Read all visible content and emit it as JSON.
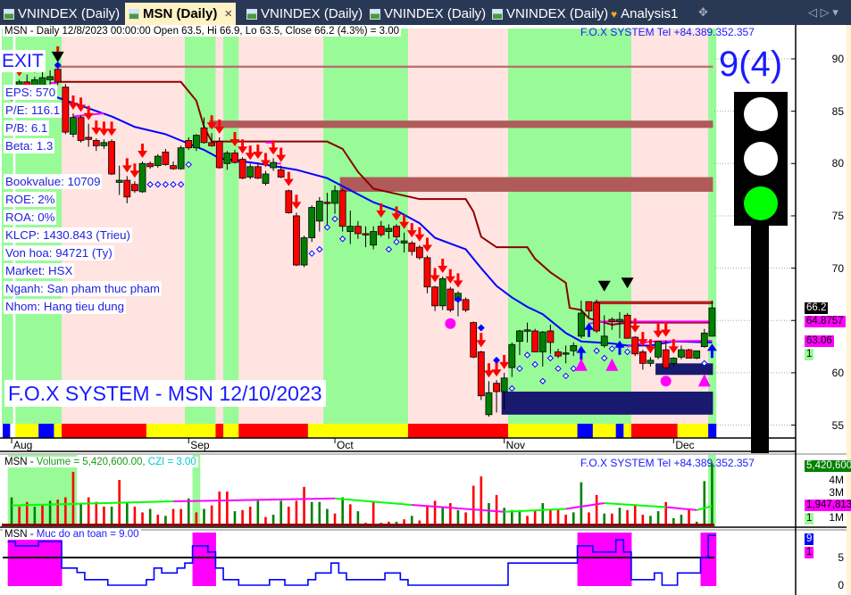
{
  "tabs": [
    {
      "label": "VNINDEX (Daily)",
      "active": false
    },
    {
      "label": "MSN (Daily)",
      "active": true
    },
    {
      "label": "VNINDEX (Daily)",
      "active": false
    },
    {
      "label": "VNINDEX (Daily)",
      "active": false
    },
    {
      "label": "VNINDEX (Daily)",
      "active": false
    },
    {
      "label": "Analysis1",
      "active": false
    }
  ],
  "tab_close": "×",
  "tab_nav": "◁ ▷ ▾",
  "tab_pin": "✥",
  "price_panel": {
    "header": "MSN - Daily 12/8/2023 00:00:00 Open 63.5, Hi 66.9, Lo 63.5, Close 66.2 (4.3%)   = 3.00",
    "fox_tel": "F.O.X SYSTEM Tel +84.389.352.357",
    "exit_label": "EXIT",
    "info": [
      "EPS: 570",
      "P/E: 116.1",
      "P/B: 6.1",
      "Beta: 1.3",
      "Bookvalue: 10709",
      "ROE: 2%",
      "ROA: 0%",
      "KLCP: 1430.843 (Trieu)",
      "Von hoa: 94721 (Ty)",
      "Market: HSX",
      "Nganh: San pham thuc pham",
      "Nhom: Hang tieu dung"
    ],
    "title": "F.O.X SYSTEM - MSN 12/10/2023",
    "signal_score": "9(4)",
    "traffic_light": {
      "top": "#ffffff",
      "middle": "#ffffff",
      "bottom": "#00ff00"
    },
    "axis_labels": [
      "90",
      "85",
      "80",
      "75",
      "70",
      "60",
      "55"
    ],
    "tags": [
      {
        "text": "66.2",
        "bg": "#000000",
        "fg": "#ffffff"
      },
      {
        "text": "64.8757",
        "bg": "#ff00ff",
        "fg": "#000000"
      },
      {
        "text": "63.06",
        "bg": "#ff00ff",
        "fg": "#000000"
      },
      {
        "text": "1",
        "bg": "#98fb98",
        "fg": "#000000"
      }
    ]
  },
  "x_axis": [
    {
      "label": "Aug",
      "bar": 0
    },
    {
      "label": "Sep",
      "bar": 23
    },
    {
      "label": "Oct",
      "bar": 42
    },
    {
      "label": "Nov",
      "bar": 64
    },
    {
      "label": "Dec",
      "bar": 86
    }
  ],
  "volume_panel": {
    "title_symbol": "MSN - ",
    "title_volume": "Volume = 5,420,600.00, ",
    "title_czi": "CZI = 3.00",
    "fox_tel": "F.O.X SYSTEM Tel +84.389.352.357",
    "axis_labels": [
      "4M",
      "3M",
      "1M"
    ],
    "tags": [
      {
        "text": "5,420,600",
        "bg": "#008000",
        "fg": "#ffffff"
      },
      {
        "text": "1,947,813",
        "bg": "#ff00ff",
        "fg": "#000000"
      },
      {
        "text": "1",
        "bg": "#98fb98",
        "fg": "#000000"
      }
    ]
  },
  "safety_panel": {
    "title_symbol": "MSN - ",
    "title": "Muc do an toan = 9.00",
    "axis_labels": [
      "5",
      "0"
    ],
    "tags": [
      {
        "text": "9",
        "bg": "#0000ff",
        "fg": "#ffffff"
      },
      {
        "text": "1",
        "bg": "#ff00ff",
        "fg": "#000000"
      }
    ]
  },
  "colors": {
    "up": "#008000",
    "down": "#ff0000",
    "green_zone": "#98fb98",
    "pink_zone": "#ffe4e1",
    "navy": "#191970",
    "resistance": "#b05a5a"
  },
  "chart_data": {
    "type": "candlestick",
    "ylim": [
      52,
      93
    ],
    "ohlc": [
      [
        86.5,
        87.5,
        86,
        87
      ],
      [
        87,
        88,
        86.5,
        87.8
      ],
      [
        87.8,
        88.5,
        87,
        87.3
      ],
      [
        87.3,
        88.3,
        87,
        88
      ],
      [
        87.3,
        88.8,
        86.5,
        88.2
      ],
      [
        88,
        88.9,
        87,
        88.3
      ],
      [
        89,
        89.5,
        87.5,
        87.8
      ],
      [
        87.3,
        87.6,
        82.8,
        83
      ],
      [
        82.8,
        84.8,
        82.5,
        84.4
      ],
      [
        84.4,
        84.6,
        82,
        82.2
      ],
      [
        82.5,
        83.8,
        81.6,
        82.3
      ],
      [
        82.2,
        82.4,
        81.2,
        81.7
      ],
      [
        81.7,
        82.3,
        81.4,
        82
      ],
      [
        82.1,
        82.3,
        78.9,
        79
      ],
      [
        78.2,
        79.8,
        77,
        78.4
      ],
      [
        78.4,
        78.8,
        76.2,
        76.8
      ],
      [
        78,
        78.3,
        77.2,
        77.4
      ],
      [
        77.3,
        80.2,
        77.2,
        80
      ],
      [
        80,
        80.2,
        79.5,
        79.7
      ],
      [
        79.8,
        80.9,
        79.6,
        80.7
      ],
      [
        81.1,
        81.4,
        79.8,
        79.9
      ],
      [
        79.8,
        80.2,
        79.4,
        79.5
      ],
      [
        79.5,
        81.7,
        79.4,
        81.5
      ],
      [
        82.2,
        82.5,
        81.3,
        81.5
      ],
      [
        81.5,
        82.8,
        81.2,
        82.7
      ],
      [
        83.4,
        84.4,
        81.9,
        82
      ],
      [
        82,
        82.9,
        81.6,
        81.7
      ],
      [
        82.1,
        82.5,
        79.5,
        79.6
      ],
      [
        80,
        81.2,
        79.4,
        81
      ],
      [
        81,
        81.3,
        80,
        80.1
      ],
      [
        80.4,
        80.6,
        78.5,
        78.6
      ],
      [
        78.7,
        80,
        78.5,
        79.7
      ],
      [
        79.7,
        80.1,
        78.5,
        78.6
      ],
      [
        78.1,
        79.3,
        77.9,
        79
      ],
      [
        79.6,
        80.5,
        79.3,
        80.1
      ],
      [
        79.4,
        79.8,
        78.6,
        78.7
      ],
      [
        77.4,
        77.5,
        75.2,
        75.3
      ],
      [
        75,
        75.3,
        70.2,
        70.3
      ],
      [
        70.3,
        73.1,
        70.1,
        72.9
      ],
      [
        72.9,
        76,
        72.5,
        75.8
      ],
      [
        74.5,
        76.8,
        73.5,
        76.4
      ],
      [
        76.3,
        77.2,
        74,
        76.2
      ],
      [
        76.2,
        77.9,
        75.2,
        77.4
      ],
      [
        77.4,
        77.6,
        73.5,
        74
      ],
      [
        73.5,
        75.5,
        72.3,
        74
      ],
      [
        74,
        74.5,
        72.8,
        73.3
      ],
      [
        73.3,
        74,
        72,
        73.2
      ],
      [
        72.2,
        74,
        71.8,
        73.5
      ],
      [
        74,
        74.5,
        73,
        73.2
      ],
      [
        73.5,
        74.2,
        72.8,
        73.8
      ],
      [
        74,
        74.2,
        72.8,
        73
      ],
      [
        72.4,
        73.4,
        71.5,
        72.6
      ],
      [
        72.4,
        72.6,
        71.2,
        71.6
      ],
      [
        72,
        72.2,
        70.8,
        71
      ],
      [
        71,
        71.2,
        67.6,
        68.2
      ],
      [
        68.2,
        68.3,
        65.9,
        66.4
      ],
      [
        66.4,
        69.2,
        66,
        69
      ],
      [
        68,
        68.2,
        65.8,
        66
      ],
      [
        66.9,
        67.8,
        65.4,
        67.6
      ],
      [
        67,
        67.2,
        65.8,
        66
      ],
      [
        64.8,
        64.9,
        61.4,
        61.5
      ],
      [
        62,
        62.1,
        57.4,
        57.8
      ],
      [
        56,
        59.2,
        55.8,
        58.1
      ],
      [
        59,
        59.3,
        56.2,
        58.2
      ],
      [
        58.2,
        60,
        56.5,
        59.5
      ],
      [
        60.5,
        62.9,
        59.6,
        62.7
      ],
      [
        63,
        64.1,
        61.7,
        64
      ],
      [
        64.1,
        64.8,
        62.9,
        64.1
      ],
      [
        64,
        64.2,
        62,
        62
      ],
      [
        62,
        64,
        60.6,
        63.9
      ],
      [
        64,
        64.6,
        61.8,
        62.9
      ],
      [
        62,
        62.3,
        61.4,
        61.6
      ],
      [
        61.9,
        62.6,
        60.9,
        61.9
      ],
      [
        62.1,
        62.9,
        61.6,
        62.6
      ],
      [
        63.5,
        66.9,
        63.3,
        65.7
      ],
      [
        66.8,
        66.8,
        65.3,
        65.9
      ],
      [
        66.7,
        67,
        63.8,
        64
      ],
      [
        62.6,
        65.5,
        62.4,
        63.5
      ],
      [
        65.1,
        65.3,
        64.1,
        64.9
      ],
      [
        64.9,
        65.8,
        63.3,
        65.1
      ],
      [
        65.5,
        65.7,
        63.3,
        63.3
      ],
      [
        63.4,
        63.5,
        61.6,
        61.8
      ],
      [
        62,
        62.2,
        60.3,
        60.9
      ],
      [
        60.9,
        61.5,
        60.6,
        61.2
      ],
      [
        61.5,
        63,
        61.3,
        63
      ],
      [
        62.2,
        63.1,
        60.4,
        60.5
      ],
      [
        60.9,
        61.5,
        60.7,
        61.4
      ],
      [
        61.5,
        62.6,
        61.3,
        62.2
      ],
      [
        62.2,
        62.3,
        61.4,
        61.4
      ],
      [
        61.4,
        62.1,
        61.3,
        62.1
      ],
      [
        62.5,
        64.2,
        62.4,
        63.8
      ],
      [
        63.5,
        66.9,
        63.5,
        66.2
      ]
    ],
    "blue_line": [
      [
        0,
        86.5
      ],
      [
        6,
        86.3
      ],
      [
        13,
        84.5
      ],
      [
        16,
        83.5
      ],
      [
        20,
        82.8
      ],
      [
        22,
        82.2
      ],
      [
        25,
        81.3
      ],
      [
        27,
        80.5
      ],
      [
        32,
        80
      ],
      [
        37,
        79.4
      ],
      [
        41,
        78.6
      ],
      [
        47,
        76.3
      ],
      [
        50,
        75.5
      ],
      [
        53,
        74.3
      ],
      [
        55,
        72.9
      ],
      [
        59,
        71.8
      ],
      [
        61,
        70
      ],
      [
        63,
        68.3
      ],
      [
        65,
        67.2
      ],
      [
        67,
        66.3
      ],
      [
        69,
        65.6
      ],
      [
        72,
        63.8
      ],
      [
        74,
        63
      ],
      [
        78,
        62.8
      ],
      [
        80,
        62.6
      ],
      [
        83,
        62.6
      ],
      [
        86,
        63
      ],
      [
        91,
        62.9
      ]
    ],
    "stop_line": [
      [
        6,
        87.8
      ],
      [
        22,
        87.8
      ],
      [
        23,
        86.9
      ],
      [
        24,
        86
      ],
      [
        25,
        83.5
      ],
      [
        26,
        82.1
      ],
      [
        41,
        82.1
      ],
      [
        43,
        81.4
      ],
      [
        45,
        79.2
      ],
      [
        47,
        77.6
      ],
      [
        53,
        76.6
      ],
      [
        59,
        76.6
      ],
      [
        60,
        75.4
      ],
      [
        61,
        73
      ],
      [
        63,
        72
      ],
      [
        67,
        72
      ],
      [
        68,
        70.9
      ],
      [
        70,
        69.6
      ],
      [
        72,
        68.6
      ],
      [
        72.5,
        66.2
      ],
      [
        74,
        66
      ],
      [
        75,
        65.2
      ],
      [
        78,
        64.6
      ],
      [
        80,
        64.8
      ],
      [
        91,
        64.8
      ]
    ],
    "magenta_segments": [
      [
        [
          5,
          87.7
        ],
        [
          6,
          87.7
        ]
      ],
      [
        [
          8,
          84.5
        ],
        [
          12,
          84.8
        ]
      ],
      [
        [
          33,
          82
        ],
        [
          34,
          82
        ]
      ],
      [
        [
          34,
          80
        ],
        [
          35,
          80
        ]
      ],
      [
        [
          75,
          64.7
        ],
        [
          77,
          64.9
        ],
        [
          91,
          64.9
        ]
      ],
      [
        [
          80,
          62.5
        ],
        [
          83,
          63
        ],
        [
          91,
          63.06
        ]
      ]
    ],
    "zones": [
      {
        "from": 6,
        "to": 91,
        "top": 89.35,
        "bottom": 89.15,
        "color": "#b87070"
      },
      {
        "from": 26,
        "to": 91,
        "top": 84.1,
        "bottom": 83.4,
        "color": "#b05a5a"
      },
      {
        "from": 43,
        "to": 91,
        "top": 78.7,
        "bottom": 77.3,
        "color": "#b05a5a"
      },
      {
        "from": 76,
        "to": 91,
        "top": 66.85,
        "bottom": 66.55,
        "color": "#b22222"
      },
      {
        "from": 64,
        "to": 91,
        "top": 58.2,
        "bottom": 56,
        "color": "#191970"
      },
      {
        "from": 84,
        "to": 91,
        "top": 60.9,
        "bottom": 59.8,
        "color": "#191970"
      }
    ],
    "green_ranges": [
      [
        0,
        6
      ],
      [
        23,
        26
      ],
      [
        28,
        29
      ],
      [
        41,
        51
      ],
      [
        65,
        80
      ],
      [
        91,
        91
      ]
    ],
    "signal_strip": "BYYYBBYRRRRRRRRRRRYYYYYYYYYRYYRRRRRRRRRYYYYYYYYYYYYYRRRRRRRRRRRRRYYYYYYYYYBBYYYBYRRRRRRYYYYB",
    "sell_arrows": [
      1,
      2,
      3,
      6,
      8,
      9,
      10,
      11,
      12,
      13,
      15,
      16,
      17,
      26,
      27,
      29,
      30,
      31,
      32,
      33,
      34,
      35,
      36,
      37,
      48,
      50,
      51,
      52,
      53,
      54,
      55,
      56,
      57,
      58,
      61,
      62,
      63,
      64,
      81,
      82,
      83,
      84,
      85,
      86
    ],
    "diamonds": [
      [
        18,
        78
      ],
      [
        19,
        78
      ],
      [
        20,
        78
      ],
      [
        21,
        78
      ],
      [
        22,
        78
      ],
      [
        23,
        79.9
      ],
      [
        39,
        71.4
      ],
      [
        40,
        71.8
      ],
      [
        41,
        73.9
      ],
      [
        42,
        74.7
      ],
      [
        43,
        72.8
      ],
      [
        49,
        71.8
      ],
      [
        50,
        72.5
      ],
      [
        65,
        58.5
      ],
      [
        66,
        60.4
      ],
      [
        67,
        61.7
      ],
      [
        68,
        60.8
      ],
      [
        69,
        59.2
      ],
      [
        70,
        61.4
      ],
      [
        71,
        60.4
      ],
      [
        72,
        59.7
      ],
      [
        73,
        60.4
      ],
      [
        76,
        62.1
      ],
      [
        77,
        61.4
      ],
      [
        78,
        62.3
      ],
      [
        80,
        62
      ],
      [
        90,
        60.9
      ]
    ],
    "buy_arrows": [
      [
        74,
        61.9
      ],
      [
        75,
        64.1
      ],
      [
        79,
        62.4
      ],
      [
        91,
        62.1
      ]
    ],
    "magenta_triangles": [
      [
        74,
        60.7
      ],
      [
        78,
        60.7
      ],
      [
        90,
        59.2
      ]
    ],
    "magenta_circles": [
      [
        57,
        64.7
      ],
      [
        85,
        59.2
      ]
    ],
    "black_triangles": [
      [
        6,
        90.1
      ],
      [
        77,
        68.2
      ],
      [
        80,
        68.5
      ]
    ],
    "blue_dots": [
      [
        6,
        89.4
      ],
      [
        58,
        67
      ],
      [
        61,
        64.3
      ],
      [
        63,
        61.2
      ]
    ],
    "volume_m": [
      2.5,
      1.7,
      2.1,
      1.7,
      1.9,
      2.2,
      2.3,
      2.5,
      4.7,
      1.9,
      2.5,
      2.1,
      1.7,
      1.7,
      4.0,
      2.1,
      1.7,
      1.2,
      1.5,
      1.0,
      0.9,
      1.5,
      1.5,
      2.4,
      1.2,
      1.5,
      1.8,
      3.0,
      3.0,
      1.3,
      1.4,
      1.7,
      2.2,
      0.8,
      1.0,
      2.2,
      1.7,
      2.2,
      3.4,
      2.1,
      2.1,
      1.5,
      1.1,
      2.5,
      1.9,
      1.3,
      0.3,
      2.2,
      0.3,
      0.4,
      0.4,
      0.6,
      0.9,
      0.5,
      1.7,
      2.2,
      1.7,
      2.0,
      1.4,
      1.2,
      3.5,
      4.3,
      2.0,
      2.7,
      1.6,
      1.4,
      1.4,
      0.9,
      1.4,
      2.0,
      1.4,
      1.4,
      1.0,
      1.2,
      3.8,
      1.2,
      2.7,
      1.1,
      1.1,
      1.6,
      1.4,
      1.9,
      1.0,
      0.9,
      1.3,
      2.1,
      0.7,
      1.0,
      1.4,
      0.4,
      3.9,
      5.42
    ],
    "volume_dir": "GRRGRGRRRGRRRGRGRRGRGRRGRGRRRGRRGRGGRRRGGGRGRGRRGRGRGRRRGRGRRRGRGGGRRGRRRGGRRGRGRRRGGRGGRGGG",
    "volume_ma": [
      [
        0,
        1.8
      ],
      [
        21,
        2.15
      ],
      [
        42,
        2.4
      ],
      [
        52,
        1.85
      ],
      [
        64,
        1.25
      ],
      [
        72,
        1.5
      ],
      [
        77,
        2.0
      ],
      [
        85,
        1.65
      ],
      [
        89,
        1.4
      ],
      [
        91,
        1.75
      ]
    ],
    "volume_green_ranges": [
      [
        0,
        6
      ],
      [
        7,
        8
      ],
      [
        24,
        24
      ],
      [
        91,
        91
      ]
    ],
    "safety": [
      7.9,
      7.1,
      7.1,
      7.1,
      7.9,
      7.9,
      7.9,
      3.1,
      3.1,
      2.3,
      1,
      1,
      1,
      0,
      0,
      0,
      0,
      0,
      1,
      3.1,
      2.2,
      2.2,
      3.1,
      4,
      7.1,
      7.1,
      6,
      3.1,
      1,
      1,
      0,
      0,
      0,
      0,
      1,
      1,
      0,
      0,
      0,
      1,
      2.2,
      2.2,
      4,
      2.2,
      1,
      1,
      1,
      1,
      1,
      2.2,
      2.2,
      1,
      0,
      0,
      0,
      0,
      0,
      0,
      0,
      0,
      0,
      0,
      0,
      0,
      0,
      4,
      4,
      4,
      4,
      4,
      4,
      4,
      4,
      4,
      7.1,
      7.1,
      6,
      6,
      6,
      8.2,
      6,
      1,
      1,
      1,
      2.2,
      0,
      0,
      2.2,
      2.2,
      2.2,
      5,
      9
    ],
    "safety_threshold": 5
  }
}
